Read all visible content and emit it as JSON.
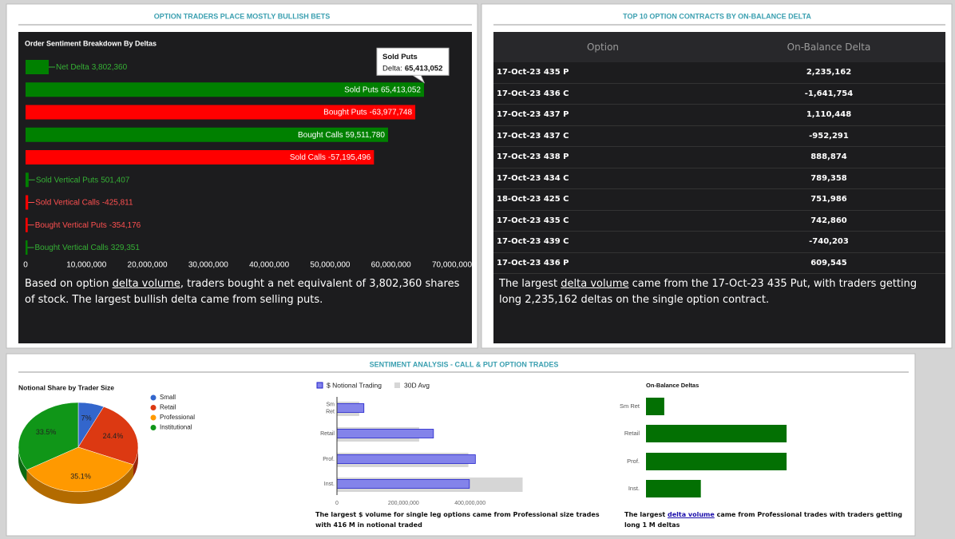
{
  "panels": [
    {
      "title": "OPTION TRADERS PLACE MOSTLY BULLISH BETS",
      "text": [
        "Based on option ",
        "delta volume",
        ", traders bought a net equivalent of 3,802,360 shares of stock. The largest bullish delta came from selling puts."
      ]
    },
    {
      "title": "TOP 10 OPTION CONTRACTS BY ON-BALANCE DELTA",
      "text": [
        "The largest ",
        "delta volume",
        " came from the 17-Oct-23 435 Put, with traders getting long 2,235,162 deltas on the single option contract."
      ]
    },
    {
      "title": "SENTIMENT ANALYSIS - CALL & PUT OPTION TRADES",
      "text": [
        "The largest $ volume for single leg options came from Professional size trades with 416 M in notional traded"
      ],
      "text2": [
        "The largest ",
        "delta volume",
        " came from Professional trades with traders getting long 1 M deltas"
      ]
    }
  ],
  "table": {
    "header": [
      "Option",
      "On-Balance Delta"
    ],
    "rows": [
      [
        "17-Oct-23 435 P",
        "2,235,162"
      ],
      [
        "17-Oct-23 436 C",
        "-1,641,754"
      ],
      [
        "17-Oct-23 437 P",
        "1,110,448"
      ],
      [
        "17-Oct-23 437 C",
        "-952,291"
      ],
      [
        "17-Oct-23 438 P",
        "888,874"
      ],
      [
        "17-Oct-23 434 C",
        "789,358"
      ],
      [
        "18-Oct-23 425 C",
        "751,986"
      ],
      [
        "17-Oct-23 435 C",
        "742,860"
      ],
      [
        "17-Oct-23 439 C",
        "-740,203"
      ],
      [
        "17-Oct-23 436 P",
        "609,545"
      ]
    ]
  },
  "chart_data": [
    {
      "type": "bar",
      "orientation": "horizontal",
      "title": "Order Sentiment Breakdown By Deltas",
      "categories": [
        "Net Delta",
        "Sold Puts",
        "Bought Puts",
        "Bought Calls",
        "Sold Calls",
        "Sold Vertical Puts",
        "Sold Vertical Calls",
        "Bought Vertical Puts",
        "Bought Vertical Calls"
      ],
      "values": [
        3802360,
        65413052,
        -63977748,
        59511780,
        -57195496,
        501407,
        -425811,
        -354176,
        329351
      ],
      "value_labels": [
        "3,802,360",
        "65,413,052",
        "-63,977,748",
        "59,511,780",
        "-57,195,496",
        "501,407",
        "-425,811",
        "-354,176",
        "329,351"
      ],
      "colors": [
        "#008000",
        "#008000",
        "#ff0000",
        "#008000",
        "#ff0000",
        "#008000",
        "#ff0000",
        "#ff0000",
        "#008000"
      ],
      "xlim": [
        0,
        70000000
      ],
      "xticks": [
        0,
        {
          "value": 10000000,
          "label": "10,000,000"
        },
        {
          "value": 20000000,
          "label": "20,000,000"
        },
        {
          "value": 30000000,
          "label": "30,000,000"
        },
        {
          "value": 40000000,
          "label": "40,000,000"
        },
        {
          "value": 50000000,
          "label": "50,000,000"
        },
        {
          "value": 60000000,
          "label": "60,000,000"
        },
        {
          "value": 70000000,
          "label": "70,000,000"
        }
      ],
      "tooltip": {
        "title": "Sold Puts",
        "label": "Delta:",
        "value": "65,413,052"
      }
    },
    {
      "type": "pie",
      "title": "Notional Share by Trader Size",
      "categories": [
        "Small",
        "Retail",
        "Professional",
        "Institutional"
      ],
      "values": [
        7,
        24.4,
        35.1,
        33.5
      ],
      "value_labels": [
        "7%",
        "24.4%",
        "35.1%",
        "33.5%"
      ],
      "colors": [
        "#3366cc",
        "#dc3912",
        "#ff9900",
        "#109618"
      ],
      "legend": "right"
    },
    {
      "type": "groupedbar",
      "orientation": "horizontal",
      "categories": [
        "Sm Ret",
        "Retail",
        "Prof.",
        "Inst."
      ],
      "series": [
        {
          "name": "$ Notional Trading",
          "color": "#8383ea",
          "values": [
            81000000,
            290000000,
            416000000,
            398000000
          ]
        },
        {
          "name": "30D Avg",
          "color": "#d6d6d6",
          "values": [
            67000000,
            247000000,
            395000000,
            558000000
          ]
        }
      ],
      "xlim": [
        0,
        600000000
      ],
      "xticks": [
        0,
        {
          "value": 200000000,
          "label": "200,000,000"
        },
        {
          "value": 400000000,
          "label": "400,000,000"
        }
      ],
      "legend": "top"
    },
    {
      "type": "bar",
      "orientation": "horizontal",
      "title": "On-Balance Deltas",
      "categories": [
        "Sm Ret",
        "Retail",
        "Prof.",
        "Inst."
      ],
      "values": [
        130000,
        1000000,
        1000000,
        390000
      ],
      "color": "#037003",
      "xlim": [
        0,
        1800000
      ]
    }
  ]
}
